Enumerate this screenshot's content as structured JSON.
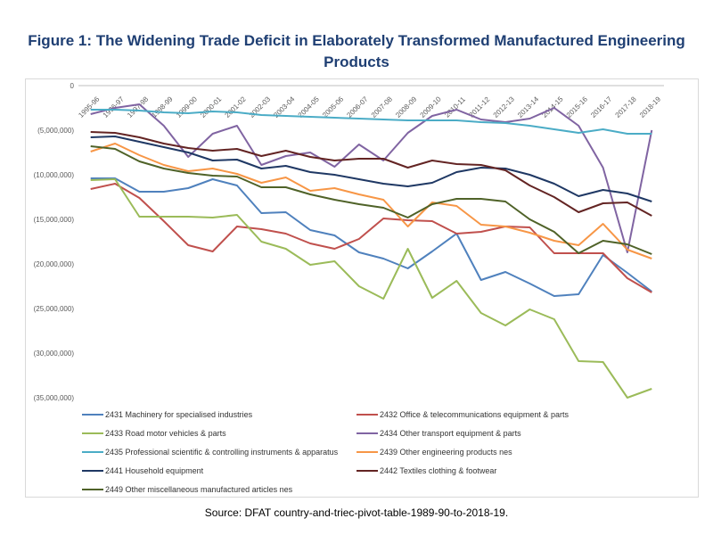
{
  "title": "Figure 1: The Widening Trade Deficit in Elaborately Transformed Manufactured Engineering Products",
  "source": "Source: DFAT country-and-triec-pivot-table-1989-90-to-2018-19.",
  "chart_data": {
    "type": "line",
    "title": "Figure 1: The Widening Trade Deficit in Elaborately Transformed Manufactured Engineering Products",
    "xlabel": "",
    "ylabel": "",
    "ylim": [
      -35000000,
      0
    ],
    "y_ticks": [
      0,
      -5000000,
      -10000000,
      -15000000,
      -20000000,
      -25000000,
      -30000000,
      -35000000
    ],
    "y_tick_labels": [
      "0",
      "(5,000,000)",
      "(10,000,000)",
      "(15,000,000)",
      "(20,000,000)",
      "(25,000,000)",
      "(30,000,000)",
      "(35,000,000)"
    ],
    "legend_position": "bottom",
    "categories": [
      "1995-96",
      "1996-97",
      "1997-98",
      "1998-99",
      "1999-00",
      "2000-01",
      "2001-02",
      "2002-03",
      "2003-04",
      "2004-05",
      "2005-06",
      "2006-07",
      "2007-08",
      "2008-09",
      "2009-10",
      "2010-11",
      "2011-12",
      "2012-13",
      "2013-14",
      "2014-15",
      "2015-16",
      "2016-17",
      "2017-18",
      "2018-19"
    ],
    "series": [
      {
        "name": "2431 Machinery for specialised industries",
        "color": "#4f81bd",
        "values": [
          -10400000,
          -10400000,
          -11900000,
          -11900000,
          -11500000,
          -10500000,
          -11200000,
          -14300000,
          -14200000,
          -16200000,
          -16800000,
          -18700000,
          -19400000,
          -20500000,
          -18600000,
          -16600000,
          -21800000,
          -20900000,
          -22200000,
          -23600000,
          -23400000,
          -19000000,
          -21000000,
          -23100000
        ]
      },
      {
        "name": "2432 Office & telecommunications equipment & parts",
        "color": "#c0504d",
        "values": [
          -11600000,
          -11000000,
          -12600000,
          -15200000,
          -17900000,
          -18600000,
          -15800000,
          -16100000,
          -16600000,
          -17700000,
          -18300000,
          -17200000,
          -14900000,
          -15100000,
          -15200000,
          -16600000,
          -16400000,
          -15800000,
          -15900000,
          -18800000,
          -18800000,
          -18800000,
          -21600000,
          -23200000
        ]
      },
      {
        "name": "2433 Road motor vehicles & parts",
        "color": "#9bbb59",
        "values": [
          -10600000,
          -10500000,
          -14700000,
          -14700000,
          -14700000,
          -14800000,
          -14500000,
          -17500000,
          -18300000,
          -20100000,
          -19700000,
          -22500000,
          -23900000,
          -18300000,
          -23800000,
          -21900000,
          -25500000,
          -26900000,
          -25100000,
          -26200000,
          -30900000,
          -31000000,
          -35000000,
          -34000000
        ]
      },
      {
        "name": "2434 Other transport equipment & parts",
        "color": "#8064a2",
        "values": [
          -3200000,
          -2500000,
          -2100000,
          -4500000,
          -8000000,
          -5400000,
          -4500000,
          -8900000,
          -7900000,
          -7500000,
          -9100000,
          -6600000,
          -8400000,
          -5300000,
          -3400000,
          -2700000,
          -3800000,
          -4100000,
          -3700000,
          -2500000,
          -4500000,
          -9200000,
          -18700000,
          -5000000
        ]
      },
      {
        "name": "2435 Professional scientific & controlling instruments & apparatus",
        "color": "#4bacc6",
        "values": [
          -2700000,
          -2700000,
          -2800000,
          -3000000,
          -3100000,
          -2900000,
          -3000000,
          -3300000,
          -3400000,
          -3500000,
          -3600000,
          -3700000,
          -3800000,
          -3900000,
          -3900000,
          -3900000,
          -4100000,
          -4200000,
          -4500000,
          -4900000,
          -5300000,
          -4900000,
          -5400000,
          -5400000
        ]
      },
      {
        "name": "2439 Other engineering products nes",
        "color": "#f79646",
        "values": [
          -7400000,
          -6500000,
          -7800000,
          -8900000,
          -9600000,
          -9300000,
          -9900000,
          -10900000,
          -10300000,
          -11800000,
          -11500000,
          -12200000,
          -12800000,
          -15800000,
          -13100000,
          -13500000,
          -15600000,
          -15800000,
          -16500000,
          -17400000,
          -17900000,
          -15500000,
          -18400000,
          -19400000
        ]
      },
      {
        "name": "2441 Household equipment",
        "color": "#1f3864",
        "values": [
          -5800000,
          -5700000,
          -6300000,
          -6900000,
          -7500000,
          -8400000,
          -8300000,
          -9300000,
          -9000000,
          -9700000,
          -10000000,
          -10500000,
          -11000000,
          -11300000,
          -10900000,
          -9700000,
          -9200000,
          -9300000,
          -10000000,
          -11000000,
          -12400000,
          -11700000,
          -12100000,
          -13000000
        ]
      },
      {
        "name": "2442 Textiles clothing & footwear",
        "color": "#632423",
        "values": [
          -5200000,
          -5300000,
          -5800000,
          -6500000,
          -7000000,
          -7300000,
          -7100000,
          -7900000,
          -7300000,
          -8000000,
          -8400000,
          -8200000,
          -8200000,
          -9200000,
          -8400000,
          -8800000,
          -8900000,
          -9500000,
          -11200000,
          -12500000,
          -14200000,
          -13200000,
          -13100000,
          -14600000
        ]
      },
      {
        "name": "2449 Other miscellaneous manufactured articles nes",
        "color": "#4f6228",
        "values": [
          -6800000,
          -7100000,
          -8500000,
          -9300000,
          -9800000,
          -10100000,
          -10200000,
          -11400000,
          -11400000,
          -12200000,
          -12800000,
          -13300000,
          -13700000,
          -14800000,
          -13300000,
          -12700000,
          -12700000,
          -13000000,
          -15000000,
          -16400000,
          -18800000,
          -17400000,
          -17800000,
          -18900000
        ]
      }
    ]
  }
}
